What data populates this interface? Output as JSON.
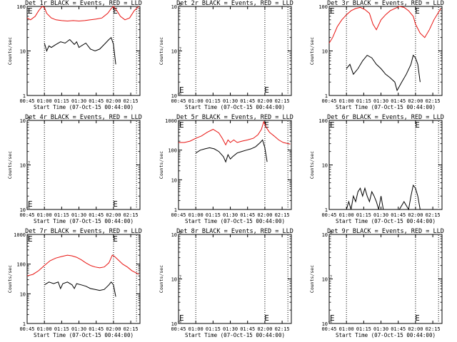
{
  "colors": {
    "events": "#000000",
    "lld": "#e8120f",
    "axis": "#000000",
    "background": "#ffffff"
  },
  "common": {
    "xlabel": "Start Time (07-Oct-15 00:44:00)",
    "ylabel": "Counts/sec",
    "xticks": [
      "00:45",
      "01:00",
      "01:15",
      "01:30",
      "01:45",
      "02:00",
      "02:15"
    ],
    "marker_label": "E"
  },
  "chart_data": [
    {
      "type": "line",
      "title": "Det 1r BLACK = Events, RED = LLD",
      "yscale": "log",
      "ylim": [
        1,
        100
      ],
      "yticks": [
        "1",
        "10",
        "100"
      ],
      "xlim_min": [
        45,
        143
      ],
      "vlines_min": [
        60,
        120,
        140
      ],
      "marker_min": 119,
      "series": [
        {
          "name": "BLACK = Events",
          "color": "#000000",
          "x": [
            60,
            62,
            64,
            66,
            70,
            74,
            78,
            82,
            86,
            88,
            90,
            92,
            96,
            100,
            104,
            108,
            112,
            116,
            118,
            120,
            122
          ],
          "y": [
            15,
            10,
            13,
            12,
            14,
            16,
            15,
            18,
            14,
            16,
            12,
            13,
            15,
            11,
            10,
            11,
            14,
            18,
            20,
            14,
            5
          ]
        },
        {
          "name": "RED = LLD",
          "color": "#e8120f",
          "x": [
            45,
            48,
            52,
            55,
            58,
            60,
            62,
            66,
            70,
            75,
            80,
            85,
            90,
            95,
            100,
            105,
            110,
            115,
            118,
            120,
            123,
            126,
            130,
            134,
            138,
            142
          ],
          "y": [
            55,
            50,
            60,
            80,
            100,
            95,
            70,
            55,
            50,
            48,
            47,
            48,
            47,
            48,
            50,
            52,
            55,
            70,
            90,
            100,
            80,
            60,
            50,
            55,
            80,
            100
          ]
        }
      ]
    },
    {
      "type": "line",
      "title": "Det 2r BLACK = Events, RED = LLD",
      "yscale": "log",
      "ylim": [
        1e-06,
        1e-08
      ],
      "yticks": [
        "10^-6",
        "10^-7",
        "10^-8"
      ],
      "yticks_display": [
        "10",
        "10",
        "10"
      ],
      "xlim_min": [
        45,
        143
      ],
      "vlines_min": [
        60,
        120,
        140
      ],
      "marker_min": 119,
      "series": []
    },
    {
      "type": "line",
      "title": "Det 3r BLACK = Events, RED = LLD",
      "yscale": "log",
      "ylim": [
        1,
        100
      ],
      "yticks": [
        "1",
        "10",
        "100"
      ],
      "xlim_min": [
        45,
        143
      ],
      "vlines_min": [
        60,
        120,
        140
      ],
      "marker_min": 119,
      "series": [
        {
          "name": "BLACK = Events",
          "color": "#000000",
          "x": [
            60,
            63,
            66,
            70,
            74,
            78,
            82,
            86,
            90,
            94,
            98,
            102,
            104,
            106,
            108,
            112,
            116,
            118,
            120,
            122,
            124
          ],
          "y": [
            4,
            5,
            3,
            4,
            6,
            8,
            7,
            5,
            4,
            3,
            2.5,
            2,
            1.3,
            1.6,
            2,
            3,
            5,
            8,
            7,
            5,
            2
          ]
        },
        {
          "name": "RED = LLD",
          "color": "#e8120f",
          "x": [
            45,
            48,
            52,
            56,
            60,
            64,
            68,
            72,
            76,
            80,
            83,
            86,
            90,
            94,
            98,
            102,
            106,
            110,
            114,
            118,
            120,
            124,
            128,
            132,
            136,
            142
          ],
          "y": [
            15,
            20,
            35,
            50,
            65,
            80,
            90,
            95,
            85,
            70,
            40,
            30,
            50,
            65,
            80,
            90,
            100,
            95,
            80,
            60,
            40,
            25,
            20,
            30,
            50,
            90
          ]
        }
      ]
    },
    {
      "type": "line",
      "title": "Det 4r BLACK = Events, RED = LLD",
      "yscale": "log",
      "ylim": [
        1e-06,
        1e-08
      ],
      "yticks": [
        "10^-6",
        "10^-7",
        "10^-8"
      ],
      "yticks_display": [
        "10",
        "10",
        "10"
      ],
      "xlim_min": [
        45,
        143
      ],
      "vlines_min": [
        60,
        120,
        140
      ],
      "marker_min": 119,
      "series": []
    },
    {
      "type": "line",
      "title": "Det 5r BLACK = Events, RED = LLD",
      "yscale": "log",
      "ylim": [
        1,
        1000
      ],
      "yticks": [
        "1",
        "10",
        "100",
        "1000"
      ],
      "xlim_min": [
        45,
        143
      ],
      "vlines_min": [
        60,
        120,
        140
      ],
      "marker_min": 119,
      "series": [
        {
          "name": "BLACK = Events",
          "color": "#000000",
          "x": [
            60,
            64,
            68,
            72,
            76,
            80,
            84,
            86,
            88,
            90,
            92,
            96,
            100,
            104,
            108,
            112,
            116,
            118,
            120,
            122
          ],
          "y": [
            80,
            100,
            110,
            120,
            110,
            90,
            60,
            40,
            70,
            50,
            60,
            80,
            90,
            100,
            110,
            130,
            180,
            220,
            120,
            40
          ]
        },
        {
          "name": "RED = LLD",
          "color": "#e8120f",
          "x": [
            45,
            50,
            55,
            60,
            65,
            70,
            75,
            80,
            83,
            86,
            88,
            90,
            93,
            96,
            100,
            105,
            110,
            114,
            117,
            119,
            121,
            124,
            128,
            132,
            136,
            142
          ],
          "y": [
            180,
            180,
            200,
            250,
            300,
            400,
            500,
            380,
            250,
            150,
            220,
            180,
            220,
            180,
            200,
            220,
            250,
            330,
            500,
            900,
            600,
            400,
            300,
            220,
            180,
            160
          ]
        }
      ]
    },
    {
      "type": "line",
      "title": "Det 6r BLACK = Events, RED = LLD",
      "yscale": "log",
      "ylim": [
        1,
        100
      ],
      "yticks": [
        "1",
        "10",
        "100"
      ],
      "xlim_min": [
        45,
        143
      ],
      "vlines_min": [
        60,
        120,
        140
      ],
      "marker_min": 119,
      "series": [
        {
          "name": "BLACK = Events",
          "color": "#000000",
          "x": [
            60,
            62,
            64,
            66,
            68,
            70,
            72,
            74,
            76,
            78,
            80,
            82,
            84,
            86,
            88,
            90,
            92,
            94,
            100,
            106,
            110,
            114,
            116,
            118,
            120,
            122,
            124
          ],
          "y": [
            1,
            1.5,
            1,
            2,
            1.5,
            2.5,
            3,
            2,
            3,
            2,
            1.5,
            2.5,
            2,
            1.5,
            1,
            2,
            1,
            1,
            1,
            1,
            1.5,
            1,
            2,
            3.5,
            3,
            2,
            1
          ]
        }
      ]
    },
    {
      "type": "line",
      "title": "Det 7r BLACK = Events, RED = LLD",
      "yscale": "log",
      "ylim": [
        1,
        1000
      ],
      "yticks": [
        "1",
        "10",
        "100",
        "1000"
      ],
      "xlim_min": [
        45,
        143
      ],
      "vlines_min": [
        60,
        120,
        140
      ],
      "marker_min": 119,
      "series": [
        {
          "name": "BLACK = Events",
          "color": "#000000",
          "x": [
            60,
            64,
            68,
            72,
            74,
            76,
            80,
            84,
            86,
            88,
            92,
            96,
            100,
            104,
            108,
            112,
            116,
            118,
            120,
            122
          ],
          "y": [
            20,
            25,
            22,
            25,
            15,
            22,
            25,
            20,
            15,
            22,
            20,
            18,
            15,
            14,
            13,
            14,
            20,
            25,
            20,
            8
          ]
        },
        {
          "name": "RED = LLD",
          "color": "#e8120f",
          "x": [
            45,
            50,
            55,
            60,
            65,
            70,
            75,
            80,
            84,
            88,
            92,
            96,
            100,
            104,
            108,
            112,
            116,
            119,
            121,
            124,
            128,
            132,
            136,
            142
          ],
          "y": [
            40,
            45,
            60,
            90,
            130,
            160,
            180,
            200,
            190,
            170,
            140,
            110,
            90,
            80,
            75,
            80,
            110,
            200,
            180,
            140,
            100,
            80,
            60,
            45
          ]
        }
      ]
    },
    {
      "type": "line",
      "title": "Det 8r BLACK = Events, RED = LLD",
      "yscale": "log",
      "ylim": [
        1e-06,
        1e-08
      ],
      "yticks": [
        "10^-6",
        "10^-7",
        "10^-8"
      ],
      "yticks_display": [
        "10",
        "10",
        "10"
      ],
      "xlim_min": [
        45,
        143
      ],
      "vlines_min": [
        60,
        120,
        140
      ],
      "marker_min": 119,
      "series": []
    },
    {
      "type": "line",
      "title": "Det 9r BLACK = Events, RED = LLD",
      "yscale": "log",
      "ylim": [
        1e-06,
        1e-08
      ],
      "yticks": [
        "10^-6",
        "10^-7",
        "10^-8"
      ],
      "yticks_display": [
        "10",
        "10",
        "10"
      ],
      "xlim_min": [
        45,
        143
      ],
      "vlines_min": [
        60,
        120,
        140
      ],
      "marker_min": 119,
      "series": []
    }
  ]
}
